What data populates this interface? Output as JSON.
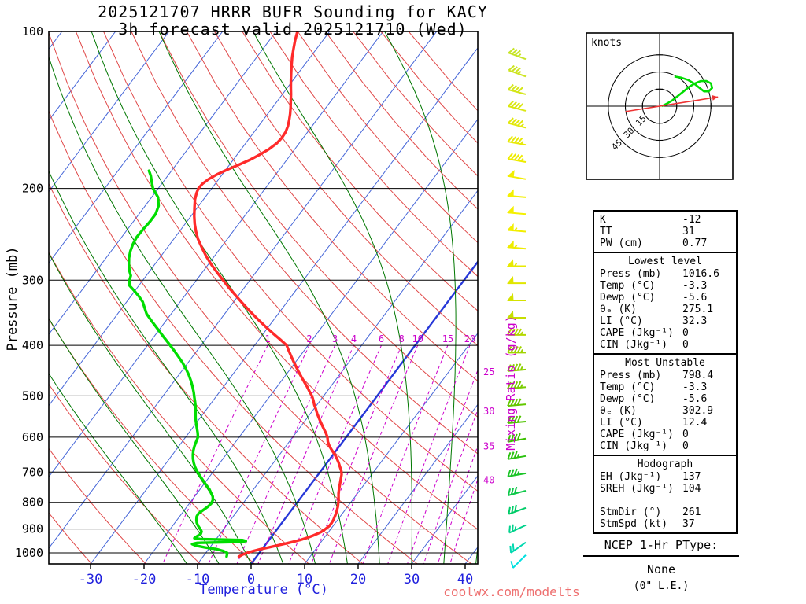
{
  "title": {
    "line1": "2025121707 HRRR BUFR Sounding for KACY",
    "line2": "3h forecast valid 2025121710 (Wed)"
  },
  "axes": {
    "pressure_label": "Pressure (mb)",
    "temperature_label": "Temperature (°C)",
    "mixing_label": "Mixing Ratio (g/kg)",
    "pressure_ticks": [
      100,
      200,
      300,
      400,
      500,
      600,
      700,
      800,
      900,
      1000
    ],
    "temperature_ticks": [
      -30,
      -20,
      -10,
      0,
      10,
      20,
      30,
      40
    ]
  },
  "colors": {
    "isotherm": "#4565d8",
    "isotherm_zero": "#2738d8",
    "dry_adiabat": "#e04848",
    "moist_adiabat": "#007700",
    "mixing": "#cc00cc",
    "temperature": "#ff2a2a",
    "dewpoint": "#00dd00",
    "temp_axis": "#2020dd",
    "storm_arrow": "#ee3333",
    "watermark": "#ee7070"
  },
  "chart_data": {
    "type": "skewt_log_p_sounding",
    "pressure_range_mb": [
      100,
      1050
    ],
    "temperature_axis_range_c": [
      -38,
      42
    ],
    "isotherm_step_c": 10,
    "dry_adiabats_theta_K": [
      240,
      250,
      260,
      270,
      280,
      290,
      300,
      310,
      320,
      330,
      340,
      350,
      360,
      370,
      380,
      390,
      400,
      410,
      420,
      430,
      440
    ],
    "moist_adiabat_start_temps_C": [
      -12,
      -6,
      0,
      6,
      12,
      18,
      24,
      30,
      36,
      42
    ],
    "mixing_ratio_lines_gkg": [
      1,
      2,
      3,
      4,
      6,
      8,
      10,
      15,
      20,
      25,
      30,
      35,
      40
    ],
    "temperature_profile": [
      [
        1016.6,
        -3.3
      ],
      [
        1008,
        -2.9
      ],
      [
        1000,
        -2.3
      ],
      [
        992,
        -1.4
      ],
      [
        984,
        -0.3
      ],
      [
        976,
        1.0
      ],
      [
        968,
        2.3
      ],
      [
        960,
        3.6
      ],
      [
        952,
        4.8
      ],
      [
        944,
        5.9
      ],
      [
        936,
        6.8
      ],
      [
        928,
        7.5
      ],
      [
        920,
        8.1
      ],
      [
        912,
        8.6
      ],
      [
        904,
        8.9
      ],
      [
        896,
        9.1
      ],
      [
        888,
        9.3
      ],
      [
        876,
        9.3
      ],
      [
        864,
        9.2
      ],
      [
        852,
        9.0
      ],
      [
        840,
        8.8
      ],
      [
        828,
        8.5
      ],
      [
        816,
        8.2
      ],
      [
        804,
        7.8
      ],
      [
        792,
        7.4
      ],
      [
        780,
        6.9
      ],
      [
        768,
        6.4
      ],
      [
        756,
        6.0
      ],
      [
        744,
        5.6
      ],
      [
        732,
        5.2
      ],
      [
        720,
        4.8
      ],
      [
        708,
        4.4
      ],
      [
        696,
        3.8
      ],
      [
        684,
        3.0
      ],
      [
        672,
        2.2
      ],
      [
        660,
        1.3
      ],
      [
        648,
        0.3
      ],
      [
        636,
        -0.8
      ],
      [
        624,
        -1.9
      ],
      [
        612,
        -2.8
      ],
      [
        600,
        -3.5
      ],
      [
        590,
        -4.3
      ],
      [
        580,
        -5.2
      ],
      [
        570,
        -6.1
      ],
      [
        560,
        -7.0
      ],
      [
        550,
        -7.9
      ],
      [
        540,
        -8.8
      ],
      [
        530,
        -9.6
      ],
      [
        520,
        -10.5
      ],
      [
        510,
        -11.3
      ],
      [
        500,
        -12.2
      ],
      [
        490,
        -13.3
      ],
      [
        480,
        -14.4
      ],
      [
        470,
        -15.6
      ],
      [
        460,
        -16.8
      ],
      [
        450,
        -18.0
      ],
      [
        440,
        -19.2
      ],
      [
        430,
        -20.4
      ],
      [
        420,
        -21.6
      ],
      [
        410,
        -22.8
      ],
      [
        400,
        -24.0
      ],
      [
        390,
        -26.0
      ],
      [
        380,
        -28.1
      ],
      [
        370,
        -30.2
      ],
      [
        360,
        -32.3
      ],
      [
        350,
        -34.4
      ],
      [
        340,
        -36.5
      ],
      [
        330,
        -38.6
      ],
      [
        320,
        -40.7
      ],
      [
        310,
        -42.9
      ],
      [
        300,
        -45.0
      ],
      [
        290,
        -47.2
      ],
      [
        280,
        -49.4
      ],
      [
        270,
        -51.5
      ],
      [
        260,
        -53.5
      ],
      [
        250,
        -55.5
      ],
      [
        242,
        -56.9
      ],
      [
        234,
        -58.2
      ],
      [
        226,
        -59.4
      ],
      [
        218,
        -60.5
      ],
      [
        210,
        -61.6
      ],
      [
        204,
        -62.2
      ],
      [
        200,
        -62.5
      ],
      [
        196,
        -62.4
      ],
      [
        192,
        -61.9
      ],
      [
        188,
        -61.0
      ],
      [
        184,
        -59.7
      ],
      [
        180,
        -58.2
      ],
      [
        176,
        -56.8
      ],
      [
        172,
        -55.7
      ],
      [
        168,
        -54.8
      ],
      [
        164,
        -54.2
      ],
      [
        160,
        -54.0
      ],
      [
        156,
        -54.1
      ],
      [
        152,
        -54.5
      ],
      [
        148,
        -55.1
      ],
      [
        144,
        -55.8
      ],
      [
        140,
        -56.6
      ],
      [
        136,
        -57.5
      ],
      [
        132,
        -58.4
      ],
      [
        128,
        -59.4
      ],
      [
        124,
        -60.4
      ],
      [
        120,
        -61.4
      ],
      [
        116,
        -62.4
      ],
      [
        112,
        -63.4
      ],
      [
        108,
        -64.3
      ],
      [
        104,
        -65.2
      ],
      [
        100,
        -66.0
      ]
    ],
    "dewpoint_profile": [
      [
        1016.6,
        -5.6
      ],
      [
        1008,
        -5.8
      ],
      [
        1000,
        -6.0
      ],
      [
        992,
        -7.0
      ],
      [
        984,
        -8.5
      ],
      [
        976,
        -11.0
      ],
      [
        968,
        -13.0
      ],
      [
        962,
        -13.8
      ],
      [
        957,
        -13.0
      ],
      [
        953,
        -5.0
      ],
      [
        949,
        -4.2
      ],
      [
        945,
        -5.0
      ],
      [
        941,
        -13.0
      ],
      [
        937,
        -14.2
      ],
      [
        930,
        -14.0
      ],
      [
        920,
        -13.6
      ],
      [
        910,
        -13.8
      ],
      [
        900,
        -14.4
      ],
      [
        888,
        -15.2
      ],
      [
        876,
        -15.9
      ],
      [
        864,
        -16.4
      ],
      [
        852,
        -16.8
      ],
      [
        840,
        -16.9
      ],
      [
        828,
        -16.5
      ],
      [
        816,
        -16.1
      ],
      [
        804,
        -15.9
      ],
      [
        792,
        -16.1
      ],
      [
        780,
        -16.6
      ],
      [
        768,
        -17.4
      ],
      [
        756,
        -18.2
      ],
      [
        744,
        -19.2
      ],
      [
        732,
        -20.2
      ],
      [
        720,
        -21.2
      ],
      [
        708,
        -22.2
      ],
      [
        696,
        -23.2
      ],
      [
        684,
        -24.1
      ],
      [
        672,
        -24.9
      ],
      [
        660,
        -25.6
      ],
      [
        648,
        -26.2
      ],
      [
        636,
        -26.7
      ],
      [
        624,
        -27.1
      ],
      [
        612,
        -27.4
      ],
      [
        600,
        -27.7
      ],
      [
        588,
        -28.4
      ],
      [
        576,
        -29.2
      ],
      [
        564,
        -30.0
      ],
      [
        552,
        -30.8
      ],
      [
        540,
        -31.5
      ],
      [
        528,
        -32.2
      ],
      [
        516,
        -33.0
      ],
      [
        504,
        -33.9
      ],
      [
        492,
        -34.8
      ],
      [
        480,
        -35.8
      ],
      [
        468,
        -36.9
      ],
      [
        456,
        -38.1
      ],
      [
        444,
        -39.5
      ],
      [
        432,
        -41.0
      ],
      [
        420,
        -42.7
      ],
      [
        408,
        -44.5
      ],
      [
        396,
        -46.4
      ],
      [
        384,
        -48.4
      ],
      [
        372,
        -50.4
      ],
      [
        360,
        -52.5
      ],
      [
        348,
        -54.6
      ],
      [
        336,
        -56.2
      ],
      [
        330,
        -57.0
      ],
      [
        322,
        -58.5
      ],
      [
        314,
        -60.2
      ],
      [
        307,
        -61.8
      ],
      [
        300,
        -62.5
      ],
      [
        294,
        -62.9
      ],
      [
        288,
        -63.8
      ],
      [
        280,
        -64.8
      ],
      [
        272,
        -65.7
      ],
      [
        264,
        -66.4
      ],
      [
        256,
        -66.9
      ],
      [
        248,
        -67.2
      ],
      [
        240,
        -67.1
      ],
      [
        232,
        -66.9
      ],
      [
        224,
        -66.9
      ],
      [
        216,
        -67.5
      ],
      [
        208,
        -68.8
      ],
      [
        200,
        -71.0
      ],
      [
        194,
        -72.2
      ],
      [
        189,
        -73.2
      ],
      [
        185,
        -74.2
      ]
    ],
    "wind_barbs": [
      {
        "p": 113,
        "spd": 35,
        "dir": 290,
        "color": "#c6e426"
      },
      {
        "p": 122,
        "spd": 35,
        "dir": 290,
        "color": "#cde41f"
      },
      {
        "p": 132,
        "spd": 40,
        "dir": 285,
        "color": "#d4e618"
      },
      {
        "p": 142,
        "spd": 40,
        "dir": 285,
        "color": "#dbe712"
      },
      {
        "p": 153,
        "spd": 45,
        "dir": 285,
        "color": "#e2e80c"
      },
      {
        "p": 165,
        "spd": 45,
        "dir": 280,
        "color": "#e8ea06"
      },
      {
        "p": 178,
        "spd": 45,
        "dir": 280,
        "color": "#eeec00"
      },
      {
        "p": 192,
        "spd": 50,
        "dir": 280,
        "color": "#f2ee00"
      },
      {
        "p": 208,
        "spd": 50,
        "dir": 275,
        "color": "#f4f000"
      },
      {
        "p": 224,
        "spd": 50,
        "dir": 275,
        "color": "#f4f000"
      },
      {
        "p": 242,
        "spd": 55,
        "dir": 275,
        "color": "#f2ee00"
      },
      {
        "p": 261,
        "spd": 55,
        "dir": 275,
        "color": "#eeec00"
      },
      {
        "p": 282,
        "spd": 55,
        "dir": 270,
        "color": "#e8ea00"
      },
      {
        "p": 304,
        "spd": 50,
        "dir": 270,
        "color": "#e0e600"
      },
      {
        "p": 328,
        "spd": 50,
        "dir": 270,
        "color": "#d4e200"
      },
      {
        "p": 354,
        "spd": 50,
        "dir": 270,
        "color": "#c6de00"
      },
      {
        "p": 382,
        "spd": 45,
        "dir": 270,
        "color": "#b4d800"
      },
      {
        "p": 413,
        "spd": 45,
        "dir": 270,
        "color": "#a0d400"
      },
      {
        "p": 445,
        "spd": 45,
        "dir": 265,
        "color": "#8cd000"
      },
      {
        "p": 481,
        "spd": 45,
        "dir": 265,
        "color": "#78cc00"
      },
      {
        "p": 519,
        "spd": 40,
        "dir": 265,
        "color": "#64c800"
      },
      {
        "p": 560,
        "spd": 40,
        "dir": 265,
        "color": "#50c400"
      },
      {
        "p": 604,
        "spd": 40,
        "dir": 260,
        "color": "#3cc000"
      },
      {
        "p": 652,
        "spd": 35,
        "dir": 260,
        "color": "#2cc210"
      },
      {
        "p": 704,
        "spd": 35,
        "dir": 260,
        "color": "#1cc428"
      },
      {
        "p": 760,
        "spd": 30,
        "dir": 255,
        "color": "#0cc848"
      },
      {
        "p": 820,
        "spd": 30,
        "dir": 250,
        "color": "#00cc68"
      },
      {
        "p": 885,
        "spd": 25,
        "dir": 245,
        "color": "#00d28c"
      },
      {
        "p": 955,
        "spd": 20,
        "dir": 235,
        "color": "#00d8b0"
      },
      {
        "p": 1010,
        "spd": 10,
        "dir": 225,
        "color": "#00e0e0"
      }
    ],
    "hodograph": {
      "units_label": "knots",
      "rings_kt": [
        15,
        30,
        45
      ],
      "trace_uv_kt": [
        [
          2,
          0
        ],
        [
          6,
          2
        ],
        [
          11,
          5
        ],
        [
          16,
          9
        ],
        [
          21,
          13
        ],
        [
          26,
          17
        ],
        [
          31,
          20
        ],
        [
          36,
          22
        ],
        [
          41,
          22
        ],
        [
          45,
          20
        ],
        [
          46,
          16
        ],
        [
          43,
          13
        ],
        [
          39,
          13
        ],
        [
          35,
          16
        ],
        [
          30,
          20
        ],
        [
          25,
          23
        ],
        [
          19,
          25
        ],
        [
          13,
          26
        ]
      ],
      "storm_motion": {
        "dir_deg": 261,
        "spd_kt": 37
      }
    }
  },
  "stats_panel": {
    "sections": [
      {
        "header": null,
        "rows": [
          [
            "K",
            "-12"
          ],
          [
            "TT",
            "31"
          ],
          [
            "PW (cm)",
            "0.77"
          ]
        ]
      },
      {
        "header": "Lowest level",
        "rows": [
          [
            "Press (mb)",
            "1016.6"
          ],
          [
            "Temp (°C)",
            "-3.3"
          ],
          [
            "Dewp (°C)",
            "-5.6"
          ],
          [
            "θₑ (K)",
            "275.1"
          ],
          [
            "LI (°C)",
            "32.3"
          ],
          [
            "CAPE (Jkg⁻¹)",
            "0"
          ],
          [
            "CIN (Jkg⁻¹)",
            "0"
          ]
        ]
      },
      {
        "header": "Most Unstable",
        "rows": [
          [
            "Press (mb)",
            "798.4"
          ],
          [
            "Temp (°C)",
            "-3.3"
          ],
          [
            "Dewp (°C)",
            "-5.6"
          ],
          [
            "θₑ (K)",
            "302.9"
          ],
          [
            "LI (°C)",
            "12.4"
          ],
          [
            "CAPE (Jkg⁻¹)",
            "0"
          ],
          [
            "CIN (Jkg⁻¹)",
            "0"
          ]
        ]
      },
      {
        "header": "Hodograph",
        "rows": [
          [
            "EH (Jkg⁻¹)",
            "137"
          ],
          [
            "SREH (Jkg⁻¹)",
            "104"
          ],
          [
            "",
            ""
          ],
          [
            "StmDir (°)",
            "261"
          ],
          [
            "StmSpd (kt)",
            "37"
          ]
        ]
      }
    ]
  },
  "ptype": {
    "heading": "NCEP 1-Hr PType:",
    "value": "None",
    "note": "(0\" L.E.)"
  },
  "watermark": "coolwx.com/modelts"
}
